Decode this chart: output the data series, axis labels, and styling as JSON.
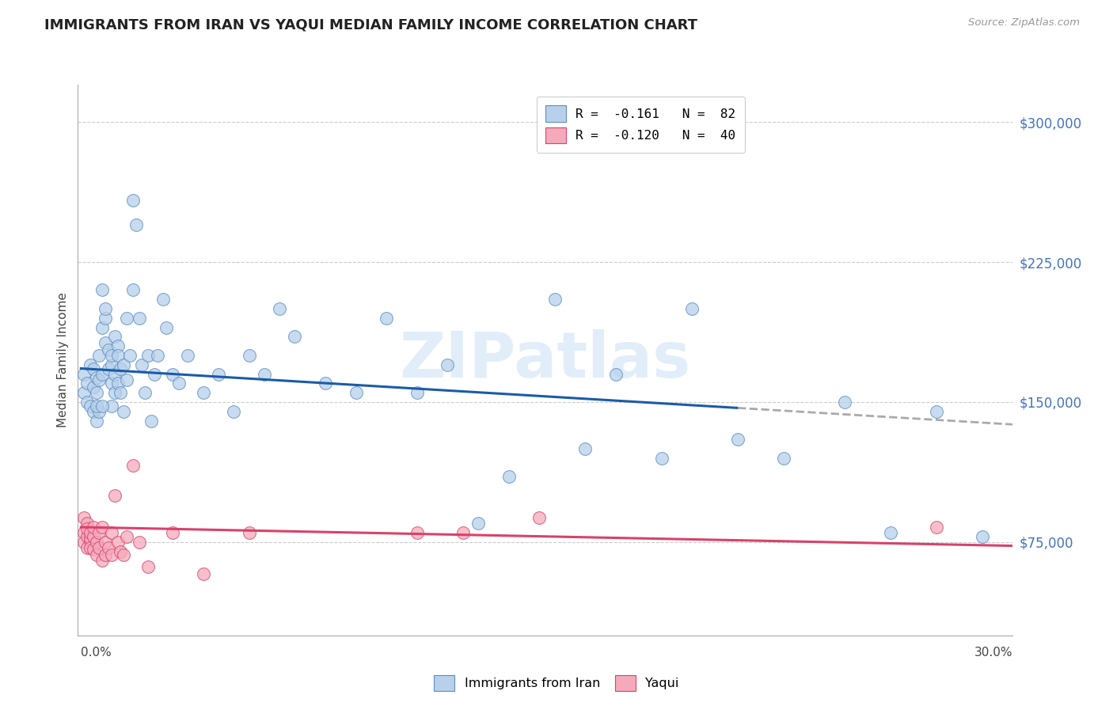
{
  "title": "IMMIGRANTS FROM IRAN VS YAQUI MEDIAN FAMILY INCOME CORRELATION CHART",
  "source": "Source: ZipAtlas.com",
  "ylabel": "Median Family Income",
  "watermark": "ZIPatlas",
  "y_ticks": [
    75000,
    150000,
    225000,
    300000
  ],
  "y_tick_labels": [
    "$75,000",
    "$150,000",
    "$225,000",
    "$300,000"
  ],
  "y_min": 25000,
  "y_max": 320000,
  "x_min": -0.001,
  "x_max": 0.305,
  "scatter_blue_color": "#b8d0ea",
  "scatter_blue_edge": "#5b8ec4",
  "scatter_pink_color": "#f5aabb",
  "scatter_pink_edge": "#d9426a",
  "trend_blue_color": "#1a5ca8",
  "trend_blue_dash_color": "#aaaaaa",
  "trend_pink_color": "#d9426a",
  "grid_color": "#cccccc",
  "right_axis_color": "#4472c4",
  "background_color": "#ffffff",
  "title_fontsize": 13,
  "axis_label_fontsize": 11,
  "tick_fontsize": 11,
  "legend_r_blue": "R =  -0.161   N =  82",
  "legend_r_pink": "R =  -0.120   N =  40",
  "scatter_blue_x": [
    0.001,
    0.001,
    0.002,
    0.002,
    0.003,
    0.003,
    0.004,
    0.004,
    0.004,
    0.005,
    0.005,
    0.005,
    0.006,
    0.006,
    0.006,
    0.007,
    0.007,
    0.007,
    0.008,
    0.008,
    0.008,
    0.009,
    0.009,
    0.01,
    0.01,
    0.01,
    0.01,
    0.011,
    0.011,
    0.011,
    0.012,
    0.012,
    0.012,
    0.013,
    0.013,
    0.014,
    0.014,
    0.015,
    0.015,
    0.016,
    0.017,
    0.017,
    0.018,
    0.019,
    0.02,
    0.021,
    0.022,
    0.023,
    0.024,
    0.025,
    0.027,
    0.028,
    0.03,
    0.032,
    0.035,
    0.04,
    0.045,
    0.05,
    0.055,
    0.06,
    0.065,
    0.07,
    0.08,
    0.09,
    0.1,
    0.11,
    0.12,
    0.13,
    0.14,
    0.155,
    0.165,
    0.175,
    0.19,
    0.2,
    0.215,
    0.23,
    0.25,
    0.265,
    0.28,
    0.295,
    0.005,
    0.007
  ],
  "scatter_blue_y": [
    155000,
    165000,
    150000,
    160000,
    170000,
    148000,
    158000,
    145000,
    168000,
    155000,
    163000,
    140000,
    162000,
    145000,
    175000,
    190000,
    165000,
    210000,
    195000,
    182000,
    200000,
    178000,
    168000,
    170000,
    175000,
    160000,
    148000,
    185000,
    165000,
    155000,
    180000,
    175000,
    160000,
    168000,
    155000,
    170000,
    145000,
    195000,
    162000,
    175000,
    210000,
    258000,
    245000,
    195000,
    170000,
    155000,
    175000,
    140000,
    165000,
    175000,
    205000,
    190000,
    165000,
    160000,
    175000,
    155000,
    165000,
    145000,
    175000,
    165000,
    200000,
    185000,
    160000,
    155000,
    195000,
    155000,
    170000,
    85000,
    110000,
    205000,
    125000,
    165000,
    120000,
    200000,
    130000,
    120000,
    150000,
    80000,
    145000,
    78000,
    148000,
    148000
  ],
  "scatter_pink_x": [
    0.001,
    0.001,
    0.001,
    0.002,
    0.002,
    0.002,
    0.002,
    0.003,
    0.003,
    0.003,
    0.003,
    0.004,
    0.004,
    0.004,
    0.005,
    0.005,
    0.006,
    0.006,
    0.007,
    0.007,
    0.008,
    0.008,
    0.009,
    0.01,
    0.01,
    0.011,
    0.012,
    0.013,
    0.014,
    0.015,
    0.017,
    0.019,
    0.022,
    0.03,
    0.04,
    0.055,
    0.11,
    0.125,
    0.15,
    0.28
  ],
  "scatter_pink_y": [
    88000,
    80000,
    75000,
    85000,
    78000,
    72000,
    82000,
    76000,
    77000,
    72000,
    80000,
    78000,
    83000,
    71000,
    75000,
    68000,
    80000,
    72000,
    83000,
    65000,
    75000,
    68000,
    72000,
    80000,
    68000,
    100000,
    75000,
    70000,
    68000,
    78000,
    116000,
    75000,
    62000,
    80000,
    58000,
    80000,
    80000,
    80000,
    88000,
    83000
  ],
  "trend_blue_x0": 0.0,
  "trend_blue_x1": 0.305,
  "trend_blue_y0": 168000,
  "trend_blue_y1": 138000,
  "trend_blue_solid_end": 0.215,
  "trend_pink_x0": 0.0,
  "trend_pink_x1": 0.305,
  "trend_pink_y0": 83000,
  "trend_pink_y1": 73000
}
